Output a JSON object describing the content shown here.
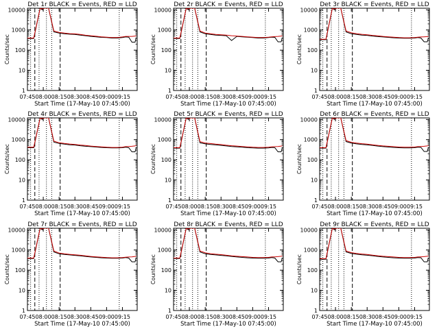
{
  "figure_title": "",
  "chart_data": [
    {
      "type": "line",
      "title": "Det 1r BLACK = Events, RED = LLD",
      "ylabel": "Counts/sec",
      "xlabel": "Start Time (17-May-10 07:45:00)",
      "x_ticks": [
        "07:45",
        "08:00",
        "08:15",
        "08:30",
        "08:45",
        "09:00",
        "09:15"
      ],
      "y_ticks": [
        "1",
        "10",
        "100",
        "1000",
        "10000"
      ],
      "x_minutes": [
        0,
        6,
        12,
        14,
        16,
        18,
        20,
        25,
        30,
        35,
        40,
        45,
        50,
        55,
        60,
        65,
        70,
        75,
        80,
        85,
        90,
        93,
        96,
        99,
        102,
        103
      ],
      "ylim": [
        1,
        12000
      ],
      "xlim": [
        0,
        104
      ],
      "series": [
        {
          "name": "Events",
          "color": "#000000",
          "values": [
            380,
            380,
            12000,
            10000,
            12000,
            12000,
            12000,
            800,
            700,
            650,
            620,
            600,
            560,
            520,
            480,
            460,
            430,
            420,
            400,
            400,
            420,
            450,
            440,
            250,
            250,
            420
          ]
        },
        {
          "name": "LLD",
          "color": "#cc0000",
          "values": [
            400,
            400,
            12000,
            11000,
            12000,
            12000,
            12000,
            900,
            750,
            700,
            660,
            640,
            600,
            550,
            520,
            490,
            460,
            440,
            420,
            420,
            450,
            480,
            480,
            480,
            500,
            520
          ]
        }
      ],
      "dashed_lines": [
        7,
        31
      ],
      "dotted_lines": [
        3,
        11,
        18,
        23,
        87
      ]
    },
    {
      "type": "line",
      "title": "Det 2r BLACK = Events, RED = LLD",
      "ylabel": "Counts/sec",
      "xlabel": "Start Time (17-May-10 07:45:00)",
      "x_ticks": [
        "07:45",
        "08:00",
        "08:15",
        "08:30",
        "08:45",
        "09:00",
        "09:15"
      ],
      "y_ticks": [
        "1",
        "10",
        "100",
        "1000",
        "10000"
      ],
      "x_minutes": [
        0,
        6,
        12,
        14,
        16,
        18,
        20,
        25,
        30,
        35,
        40,
        45,
        50,
        55,
        60,
        65,
        70,
        75,
        80,
        85,
        90,
        93,
        96,
        99,
        102,
        103
      ],
      "ylim": [
        1,
        12000
      ],
      "xlim": [
        0,
        104
      ],
      "series": [
        {
          "name": "Events",
          "color": "#000000",
          "values": [
            380,
            380,
            12000,
            10000,
            12000,
            12000,
            12000,
            800,
            650,
            600,
            560,
            540,
            520,
            300,
            480,
            460,
            440,
            420,
            400,
            400,
            420,
            440,
            430,
            260,
            260,
            420
          ]
        },
        {
          "name": "LLD",
          "color": "#cc0000",
          "values": [
            400,
            400,
            12000,
            11000,
            12000,
            12000,
            12000,
            900,
            700,
            650,
            600,
            580,
            560,
            520,
            500,
            480,
            460,
            440,
            420,
            420,
            440,
            460,
            470,
            480,
            500,
            520
          ]
        }
      ],
      "dashed_lines": [
        7,
        31
      ],
      "dotted_lines": [
        3,
        11,
        18,
        23,
        87
      ]
    },
    {
      "type": "line",
      "title": "Det 3r BLACK = Events, RED = LLD",
      "ylabel": "Counts/sec",
      "xlabel": "Start Time (17-May-10 07:45:00)",
      "x_ticks": [
        "07:45",
        "08:00",
        "08:15",
        "08:30",
        "08:45",
        "09:00",
        "09:15"
      ],
      "y_ticks": [
        "1",
        "10",
        "100",
        "1000",
        "10000"
      ],
      "x_minutes": [
        0,
        6,
        12,
        14,
        16,
        18,
        20,
        25,
        30,
        35,
        40,
        45,
        50,
        55,
        60,
        65,
        70,
        75,
        80,
        85,
        90,
        93,
        96,
        99,
        102,
        103
      ],
      "ylim": [
        1,
        12000
      ],
      "xlim": [
        0,
        104
      ],
      "series": [
        {
          "name": "Events",
          "color": "#000000",
          "values": [
            330,
            330,
            12000,
            10000,
            12000,
            12000,
            12000,
            800,
            650,
            600,
            560,
            540,
            500,
            470,
            450,
            430,
            410,
            400,
            390,
            390,
            400,
            420,
            400,
            260,
            260,
            400
          ]
        },
        {
          "name": "LLD",
          "color": "#cc0000",
          "values": [
            350,
            350,
            12000,
            11000,
            12000,
            12000,
            12000,
            900,
            720,
            660,
            610,
            580,
            540,
            510,
            480,
            460,
            440,
            420,
            410,
            410,
            420,
            440,
            450,
            460,
            470,
            480
          ]
        }
      ],
      "dashed_lines": [
        7,
        31
      ],
      "dotted_lines": [
        3,
        11,
        18,
        23,
        87
      ]
    },
    {
      "type": "line",
      "title": "Det 4r BLACK = Events, RED = LLD",
      "ylabel": "Counts/sec",
      "xlabel": "Start Time (17-May-10 07:45:00)",
      "x_ticks": [
        "07:45",
        "08:00",
        "08:15",
        "08:30",
        "08:45",
        "09:00",
        "09:15"
      ],
      "y_ticks": [
        "1",
        "10",
        "100",
        "1000",
        "10000"
      ],
      "x_minutes": [
        0,
        6,
        12,
        14,
        16,
        18,
        20,
        25,
        30,
        35,
        40,
        45,
        50,
        55,
        60,
        65,
        70,
        75,
        80,
        85,
        90,
        93,
        96,
        99,
        102,
        103
      ],
      "ylim": [
        1,
        12000
      ],
      "xlim": [
        0,
        104
      ],
      "series": [
        {
          "name": "Events",
          "color": "#000000",
          "values": [
            400,
            400,
            12000,
            10000,
            12000,
            12000,
            12000,
            750,
            650,
            600,
            560,
            540,
            500,
            470,
            450,
            430,
            410,
            400,
            390,
            390,
            400,
            420,
            400,
            250,
            250,
            400
          ]
        },
        {
          "name": "LLD",
          "color": "#cc0000",
          "values": [
            420,
            420,
            12000,
            11000,
            12000,
            12000,
            12000,
            850,
            700,
            650,
            610,
            580,
            540,
            510,
            480,
            460,
            440,
            420,
            410,
            410,
            420,
            450,
            460,
            470,
            490,
            520
          ]
        }
      ],
      "dashed_lines": [
        7,
        31
      ],
      "dotted_lines": [
        3,
        11,
        18,
        23,
        87
      ]
    },
    {
      "type": "line",
      "title": "Det 5r BLACK = Events, RED = LLD",
      "ylabel": "Counts/sec",
      "xlabel": "Start Time (17-May-10 07:45:00)",
      "x_ticks": [
        "07:45",
        "08:00",
        "08:15",
        "08:30",
        "08:45",
        "09:00",
        "09:15"
      ],
      "y_ticks": [
        "1",
        "10",
        "100",
        "1000",
        "10000"
      ],
      "x_minutes": [
        0,
        6,
        12,
        14,
        16,
        18,
        20,
        25,
        30,
        35,
        40,
        45,
        50,
        55,
        60,
        65,
        70,
        75,
        80,
        85,
        90,
        93,
        96,
        99,
        102,
        103
      ],
      "ylim": [
        1,
        12000
      ],
      "xlim": [
        0,
        104
      ],
      "series": [
        {
          "name": "Events",
          "color": "#000000",
          "values": [
            380,
            380,
            12000,
            10000,
            12000,
            12000,
            12000,
            700,
            620,
            580,
            550,
            520,
            490,
            460,
            440,
            420,
            400,
            390,
            380,
            380,
            390,
            410,
            400,
            250,
            250,
            400
          ]
        },
        {
          "name": "LLD",
          "color": "#cc0000",
          "values": [
            400,
            400,
            12000,
            11000,
            12000,
            12000,
            12000,
            800,
            680,
            640,
            600,
            570,
            530,
            500,
            480,
            460,
            440,
            420,
            410,
            410,
            420,
            440,
            450,
            460,
            480,
            500
          ]
        }
      ],
      "dashed_lines": [
        7,
        31
      ],
      "dotted_lines": [
        3,
        11,
        18,
        23,
        87
      ]
    },
    {
      "type": "line",
      "title": "Det 6r BLACK = Events, RED = LLD",
      "ylabel": "Counts/sec",
      "xlabel": "Start Time (17-May-10 07:45:00)",
      "x_ticks": [
        "07:45",
        "08:00",
        "08:15",
        "08:30",
        "08:45",
        "09:00",
        "09:15"
      ],
      "y_ticks": [
        "1",
        "10",
        "100",
        "1000",
        "10000"
      ],
      "x_minutes": [
        0,
        6,
        12,
        14,
        16,
        18,
        20,
        25,
        30,
        35,
        40,
        45,
        50,
        55,
        60,
        65,
        70,
        75,
        80,
        85,
        90,
        93,
        96,
        99,
        102,
        103
      ],
      "ylim": [
        1,
        12000
      ],
      "xlim": [
        0,
        104
      ],
      "series": [
        {
          "name": "Events",
          "color": "#000000",
          "values": [
            380,
            380,
            12000,
            10000,
            12000,
            12000,
            12000,
            800,
            680,
            620,
            580,
            550,
            520,
            480,
            450,
            430,
            410,
            400,
            390,
            390,
            400,
            420,
            410,
            260,
            260,
            410
          ]
        },
        {
          "name": "LLD",
          "color": "#cc0000",
          "values": [
            400,
            400,
            12000,
            11000,
            12000,
            12000,
            12000,
            900,
            740,
            680,
            630,
            600,
            560,
            520,
            490,
            470,
            450,
            430,
            420,
            420,
            430,
            450,
            460,
            470,
            490,
            510
          ]
        }
      ],
      "dashed_lines": [
        7,
        31
      ],
      "dotted_lines": [
        3,
        11,
        18,
        23,
        87
      ]
    },
    {
      "type": "line",
      "title": "Det 7r BLACK = Events, RED = LLD",
      "ylabel": "Counts/sec",
      "xlabel": "Start Time (17-May-10 07:45:00)",
      "x_ticks": [
        "07:45",
        "08:00",
        "08:15",
        "08:30",
        "08:45",
        "09:00",
        "09:15"
      ],
      "y_ticks": [
        "1",
        "10",
        "100",
        "1000",
        "10000"
      ],
      "x_minutes": [
        0,
        6,
        12,
        14,
        16,
        18,
        20,
        25,
        30,
        35,
        40,
        45,
        50,
        55,
        60,
        65,
        70,
        75,
        80,
        85,
        90,
        93,
        96,
        99,
        102,
        103
      ],
      "ylim": [
        1,
        12000
      ],
      "xlim": [
        0,
        104
      ],
      "series": [
        {
          "name": "Events",
          "color": "#000000",
          "values": [
            380,
            380,
            12000,
            10000,
            12000,
            12000,
            12000,
            800,
            650,
            600,
            570,
            540,
            510,
            480,
            450,
            430,
            410,
            400,
            390,
            390,
            400,
            420,
            400,
            260,
            260,
            420
          ]
        },
        {
          "name": "LLD",
          "color": "#cc0000",
          "values": [
            400,
            400,
            12000,
            11000,
            12000,
            12000,
            12000,
            900,
            700,
            650,
            610,
            580,
            550,
            510,
            480,
            460,
            440,
            420,
            410,
            410,
            420,
            440,
            450,
            460,
            480,
            500
          ]
        }
      ],
      "dashed_lines": [
        7,
        31
      ],
      "dotted_lines": [
        3,
        11,
        18,
        23,
        87
      ]
    },
    {
      "type": "line",
      "title": "Det 8r BLACK = Events, RED = LLD",
      "ylabel": "Counts/sec",
      "xlabel": "Start Time (17-May-10 07:45:00)",
      "x_ticks": [
        "07:45",
        "08:00",
        "08:15",
        "08:30",
        "08:45",
        "09:00",
        "09:15"
      ],
      "y_ticks": [
        "1",
        "10",
        "100",
        "1000",
        "10000"
      ],
      "x_minutes": [
        0,
        6,
        12,
        14,
        16,
        18,
        20,
        25,
        30,
        35,
        40,
        45,
        50,
        55,
        60,
        65,
        70,
        75,
        80,
        85,
        90,
        93,
        96,
        99,
        102,
        103
      ],
      "ylim": [
        1,
        12000
      ],
      "xlim": [
        0,
        104
      ],
      "series": [
        {
          "name": "Events",
          "color": "#000000",
          "values": [
            380,
            380,
            12000,
            10000,
            12000,
            12000,
            12000,
            800,
            650,
            600,
            570,
            540,
            510,
            480,
            450,
            430,
            410,
            400,
            390,
            390,
            400,
            420,
            400,
            260,
            260,
            410
          ]
        },
        {
          "name": "LLD",
          "color": "#cc0000",
          "values": [
            400,
            400,
            12000,
            11000,
            12000,
            12000,
            12000,
            900,
            720,
            660,
            620,
            590,
            550,
            510,
            490,
            470,
            450,
            430,
            420,
            420,
            430,
            450,
            460,
            470,
            490,
            510
          ]
        }
      ],
      "dashed_lines": [
        7,
        31
      ],
      "dotted_lines": [
        3,
        11,
        18,
        23,
        87
      ]
    },
    {
      "type": "line",
      "title": "Det 9r BLACK = Events, RED = LLD",
      "ylabel": "Counts/sec",
      "xlabel": "Start Time (17-May-10 07:45:00)",
      "x_ticks": [
        "07:45",
        "08:00",
        "08:15",
        "08:30",
        "08:45",
        "09:00",
        "09:15"
      ],
      "y_ticks": [
        "1",
        "10",
        "100",
        "1000",
        "10000"
      ],
      "x_minutes": [
        0,
        6,
        12,
        14,
        16,
        18,
        20,
        25,
        30,
        35,
        40,
        45,
        50,
        55,
        60,
        65,
        70,
        75,
        80,
        85,
        90,
        93,
        96,
        99,
        102,
        103
      ],
      "ylim": [
        1,
        12000
      ],
      "xlim": [
        0,
        104
      ],
      "series": [
        {
          "name": "Events",
          "color": "#000000",
          "values": [
            350,
            350,
            12000,
            10000,
            12000,
            12000,
            12000,
            800,
            680,
            620,
            580,
            550,
            520,
            480,
            450,
            430,
            410,
            400,
            390,
            390,
            400,
            420,
            410,
            260,
            260,
            410
          ]
        },
        {
          "name": "LLD",
          "color": "#cc0000",
          "values": [
            370,
            370,
            12000,
            11000,
            12000,
            12000,
            12000,
            900,
            740,
            680,
            630,
            600,
            560,
            520,
            490,
            470,
            450,
            430,
            420,
            420,
            430,
            450,
            460,
            470,
            490,
            510
          ]
        }
      ],
      "dashed_lines": [
        7,
        31
      ],
      "dotted_lines": [
        3,
        11,
        18,
        23,
        87
      ]
    }
  ]
}
